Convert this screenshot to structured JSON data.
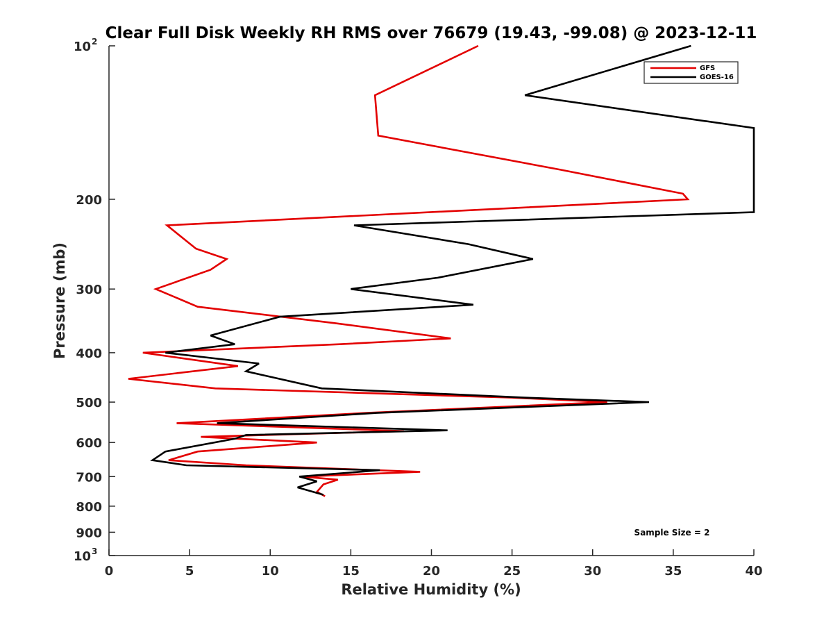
{
  "chart_data": {
    "type": "line",
    "title": "Clear Full Disk Weekly RH RMS over 76679 (19.43, -99.08) @ 2023-12-11",
    "xlabel": "Relative Humidity (%)",
    "ylabel": "Pressure (mb)",
    "xlim": [
      0,
      40
    ],
    "ylim": [
      100,
      1000
    ],
    "y_scale": "log",
    "y_reversed": true,
    "grid": false,
    "legend_position": "top-right",
    "x_ticks": [
      0,
      5,
      10,
      15,
      20,
      25,
      30,
      35,
      40
    ],
    "y_ticks": [
      {
        "value": 100,
        "base": "10",
        "exp": "2"
      },
      {
        "value": 200,
        "text": "200"
      },
      {
        "value": 300,
        "text": "300"
      },
      {
        "value": 400,
        "text": "400"
      },
      {
        "value": 500,
        "text": "500"
      },
      {
        "value": 600,
        "text": "600"
      },
      {
        "value": 700,
        "text": "700"
      },
      {
        "value": 800,
        "text": "800"
      },
      {
        "value": 900,
        "text": "900"
      },
      {
        "value": 1000,
        "base": "10",
        "exp": "3"
      }
    ],
    "series": [
      {
        "name": "GFS",
        "color": "#e30000",
        "points": [
          [
            22.9,
            100
          ],
          [
            16.5,
            125
          ],
          [
            16.7,
            150
          ],
          [
            28.0,
            175
          ],
          [
            35.6,
            195
          ],
          [
            35.9,
            200
          ],
          [
            3.6,
            225
          ],
          [
            5.4,
            250
          ],
          [
            7.3,
            262
          ],
          [
            6.3,
            275
          ],
          [
            2.9,
            300
          ],
          [
            5.5,
            325
          ],
          [
            14.0,
            350
          ],
          [
            21.2,
            375
          ],
          [
            14.3,
            385
          ],
          [
            2.1,
            400
          ],
          [
            8.0,
            425
          ],
          [
            1.2,
            450
          ],
          [
            6.6,
            470
          ],
          [
            25.0,
            490
          ],
          [
            30.9,
            500
          ],
          [
            16.0,
            525
          ],
          [
            4.2,
            550
          ],
          [
            18.3,
            570
          ],
          [
            5.7,
            585
          ],
          [
            8.0,
            590
          ],
          [
            12.9,
            600
          ],
          [
            5.5,
            625
          ],
          [
            3.7,
            650
          ],
          [
            8.5,
            665
          ],
          [
            19.3,
            685
          ],
          [
            12.0,
            700
          ],
          [
            14.2,
            710
          ],
          [
            13.3,
            725
          ],
          [
            12.9,
            750
          ],
          [
            13.4,
            765
          ]
        ]
      },
      {
        "name": "GOES-16",
        "color": "#000000",
        "points": [
          [
            36.1,
            100
          ],
          [
            25.8,
            125
          ],
          [
            40.0,
            145
          ],
          [
            40.0,
            212
          ],
          [
            15.2,
            225
          ],
          [
            22.3,
            245
          ],
          [
            26.3,
            262
          ],
          [
            20.4,
            285
          ],
          [
            15.0,
            300
          ],
          [
            22.6,
            322
          ],
          [
            10.6,
            340
          ],
          [
            6.3,
            370
          ],
          [
            7.8,
            385
          ],
          [
            3.5,
            400
          ],
          [
            9.3,
            420
          ],
          [
            8.5,
            435
          ],
          [
            13.2,
            470
          ],
          [
            25.8,
            490
          ],
          [
            33.5,
            500
          ],
          [
            16.6,
            525
          ],
          [
            6.7,
            550
          ],
          [
            21.0,
            568
          ],
          [
            8.5,
            580
          ],
          [
            7.8,
            590
          ],
          [
            3.5,
            625
          ],
          [
            2.7,
            650
          ],
          [
            4.8,
            665
          ],
          [
            16.8,
            680
          ],
          [
            11.8,
            700
          ],
          [
            12.9,
            715
          ],
          [
            11.7,
            735
          ],
          [
            13.3,
            760
          ]
        ]
      }
    ],
    "annotations": [
      {
        "text": "Sample Size = 2",
        "position": "bottom-right"
      }
    ]
  }
}
